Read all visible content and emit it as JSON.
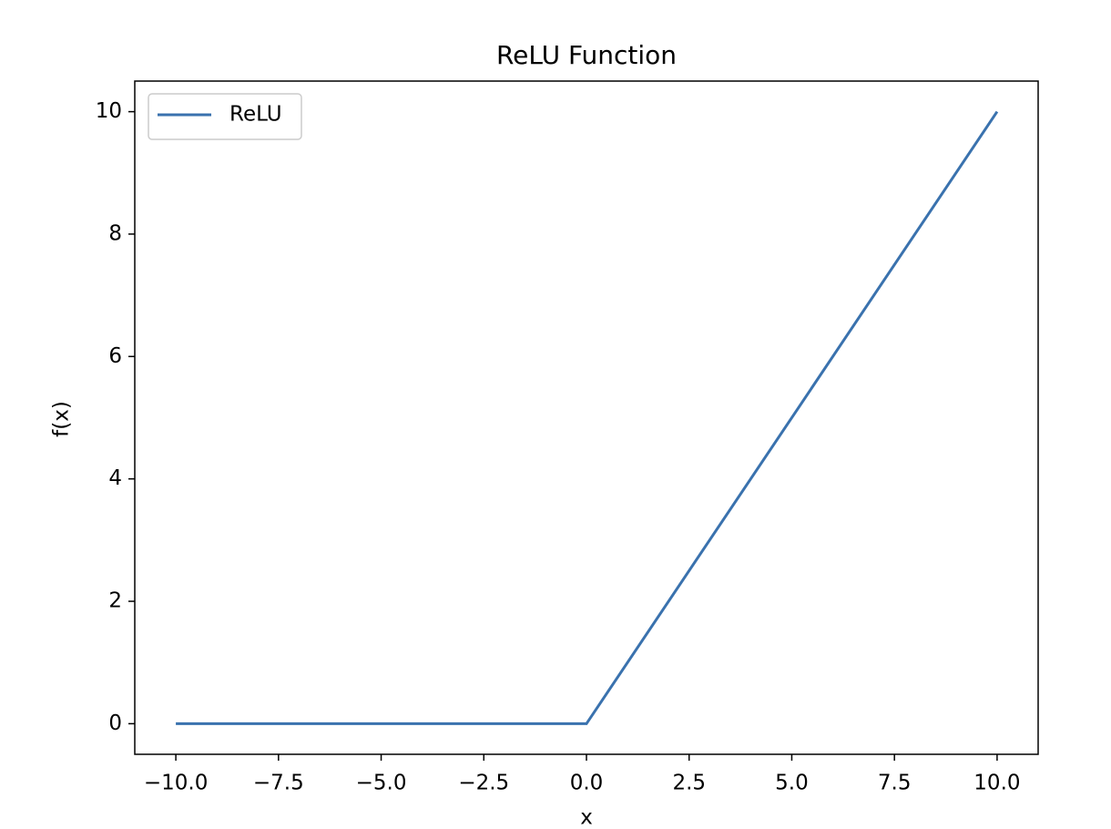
{
  "chart_data": {
    "type": "line",
    "title": "ReLU Function",
    "x_label": "x",
    "y_label": "f(x)",
    "x": [
      -10,
      0,
      10
    ],
    "series": [
      {
        "name": "ReLU",
        "color": "#3a72ae",
        "values": [
          0,
          0,
          10
        ]
      }
    ],
    "xlim": [
      -11,
      11
    ],
    "ylim": [
      -0.5,
      10.5
    ],
    "xticks": [
      {
        "value": -10,
        "label": "−10.0"
      },
      {
        "value": -7.5,
        "label": "−7.5"
      },
      {
        "value": -5,
        "label": "−5.0"
      },
      {
        "value": -2.5,
        "label": "−2.5"
      },
      {
        "value": 0,
        "label": "0.0"
      },
      2.5,
      {
        "value": 5,
        "label": "5.0"
      },
      7.5,
      {
        "value": 10,
        "label": "10.0"
      }
    ],
    "yticks": [
      0,
      2,
      4,
      6,
      8,
      10
    ],
    "grid": false,
    "legend": "upper-left"
  }
}
